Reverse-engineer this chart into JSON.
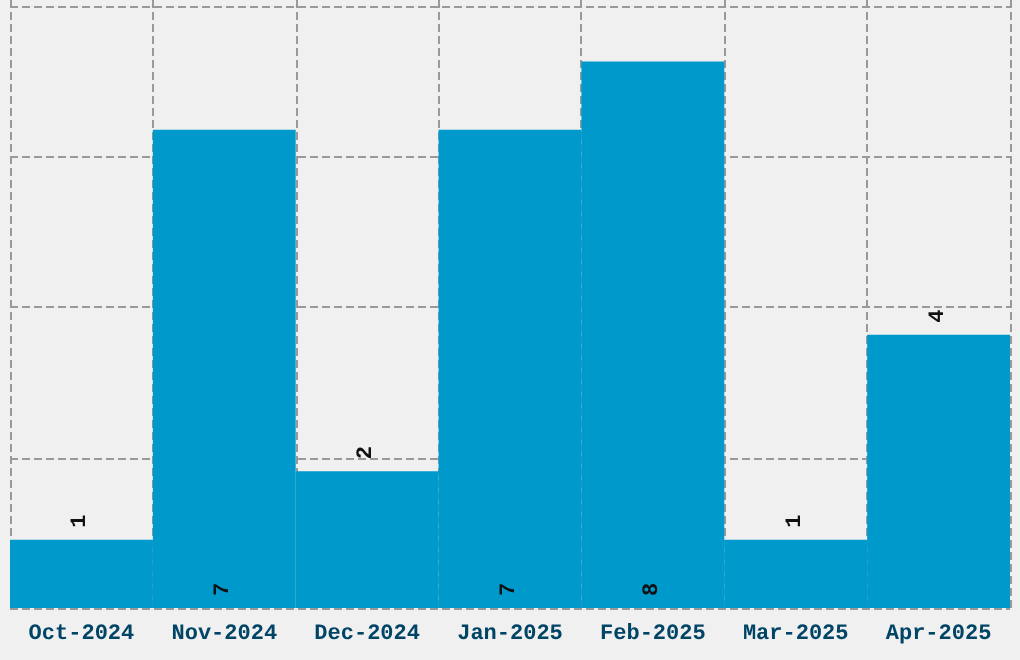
{
  "chart_data": {
    "type": "bar",
    "categories": [
      "Oct-2024",
      "Nov-2024",
      "Dec-2024",
      "Jan-2025",
      "Feb-2025",
      "Mar-2025",
      "Apr-2025"
    ],
    "values": [
      1,
      7,
      2,
      7,
      8,
      1,
      4
    ],
    "color": "#0099cc",
    "data_labels": true,
    "grid": true,
    "tick_labels": "x",
    "ylim": [
      0,
      8.9
    ],
    "yticks": [
      {
        "value": 0,
        "label": null
      },
      {
        "value": 2.2,
        "label": null
      },
      {
        "value": 4.4,
        "label": null
      },
      {
        "value": 6.6,
        "label": null
      },
      {
        "value": 8.8,
        "label": null
      }
    ]
  }
}
